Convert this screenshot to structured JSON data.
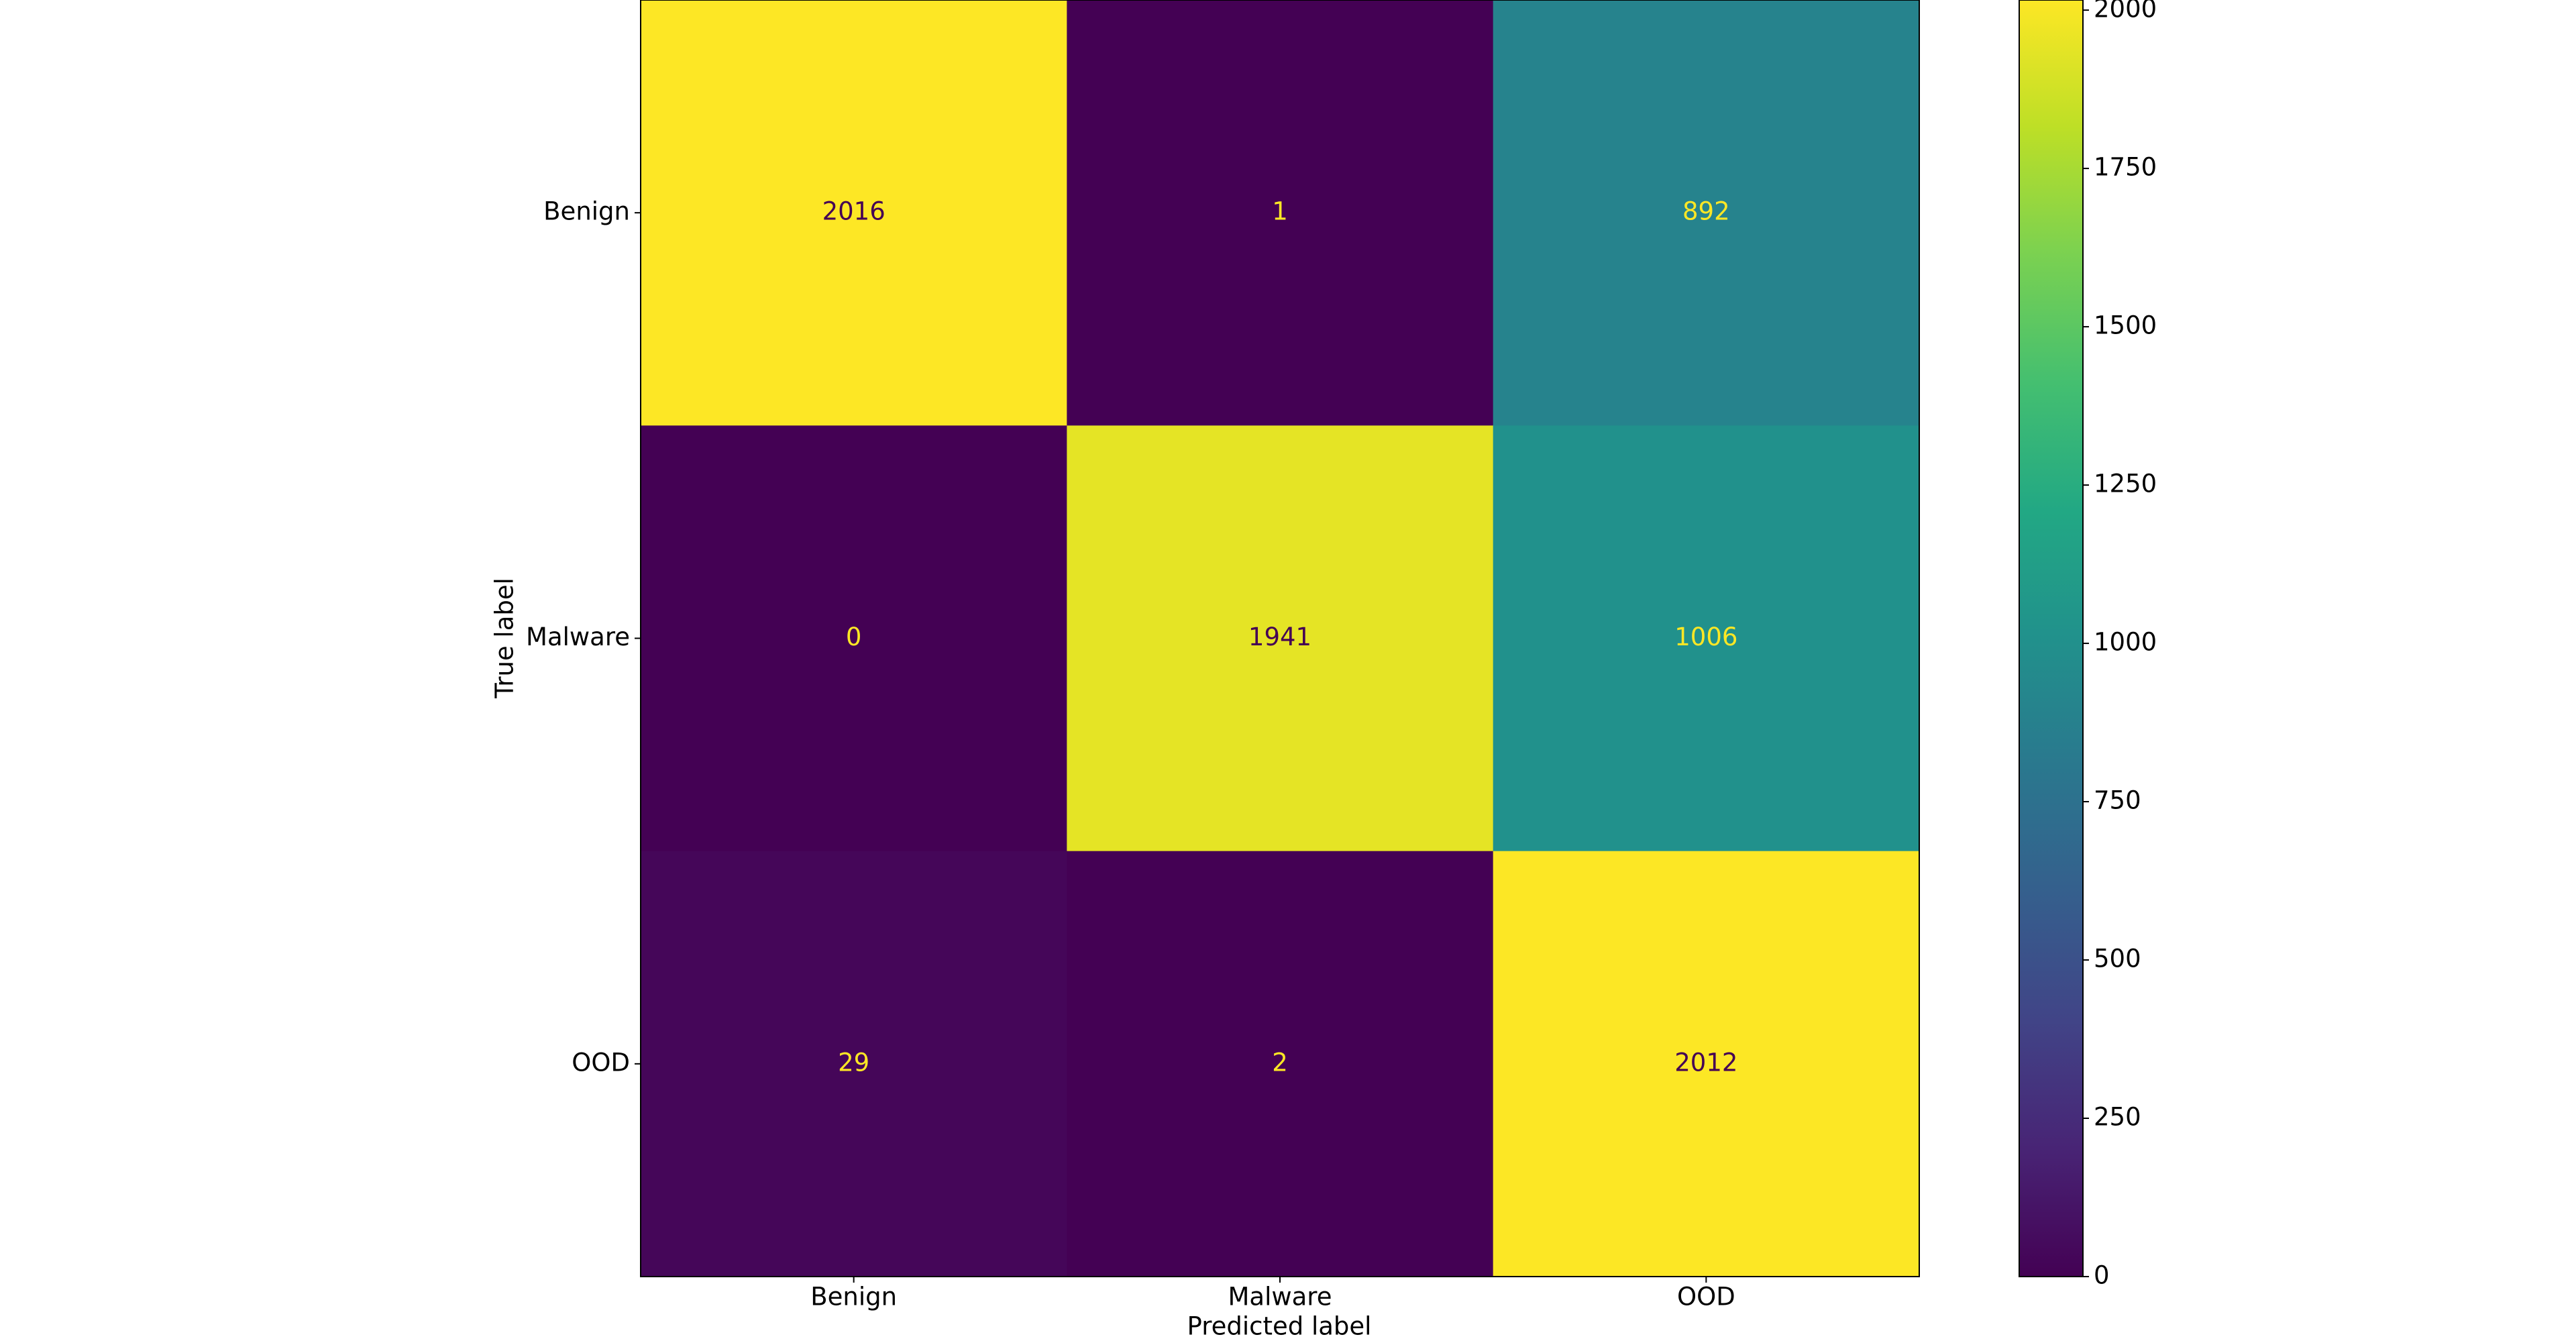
{
  "chart_data": {
    "type": "heatmap",
    "x_label": "Predicted label",
    "y_label": "True label",
    "x_categories": [
      "Benign",
      "Malware",
      "OOD"
    ],
    "y_categories": [
      "Benign",
      "Malware",
      "OOD"
    ],
    "values": [
      [
        2016,
        1,
        892
      ],
      [
        0,
        1941,
        1006
      ],
      [
        29,
        2,
        2012
      ]
    ],
    "colormap": "viridis",
    "zlim": [
      0,
      2016
    ],
    "zticks": [
      0,
      250,
      500,
      750,
      1000,
      1250,
      1500,
      1750,
      2000
    ]
  }
}
